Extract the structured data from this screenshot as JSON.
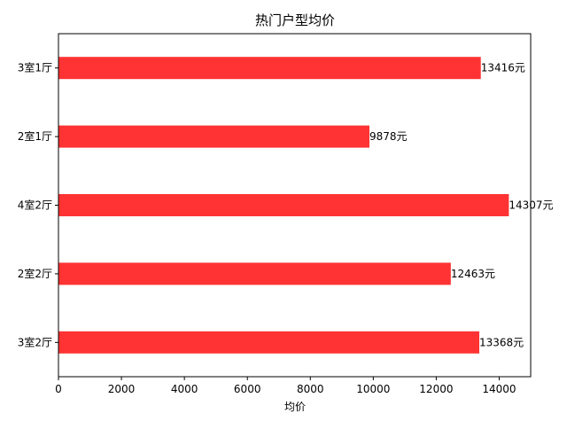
{
  "chart_data": {
    "type": "bar",
    "orientation": "horizontal",
    "title": "热门户型均价",
    "xlabel": "均价",
    "ylabel": "",
    "xlim": [
      0,
      15000
    ],
    "xticks": [
      0,
      2000,
      4000,
      6000,
      8000,
      10000,
      12000,
      14000
    ],
    "grid": false,
    "categories": [
      "3室1厅",
      "2室1厅",
      "4室2厅",
      "2室2厅",
      "3室2厅"
    ],
    "values": [
      13416,
      9878,
      14307,
      12463,
      13368
    ],
    "data_labels": [
      "13416元",
      "9878元",
      "14307元",
      "12463元",
      "13368元"
    ],
    "bar_color": "#ff3333"
  }
}
